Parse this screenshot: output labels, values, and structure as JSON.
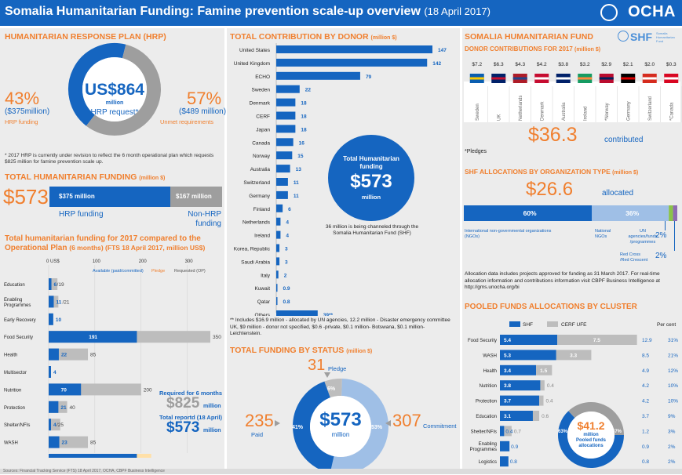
{
  "header": {
    "title": "Somalia Humanitarian Funding: Famine prevention scale-up overview",
    "date": "(18 April 2017)",
    "logo": "OCHA"
  },
  "hrp": {
    "title": "HUMANITARIAN RESPONSE PLAN (HRP)",
    "center_value": "US$864",
    "center_unit": "million",
    "center_label": "HRP request*",
    "funded_pct": "43%",
    "funded_amount": "($375million)",
    "funded_label": "HRP funding",
    "unmet_pct": "57%",
    "unmet_amount": "($489 million)",
    "unmet_label": "Unmet requirements",
    "note": "* 2017 HRP is currently under revision to reflect the 6 month operational plan which requests $825 million for famine prevention scale up.",
    "colors": {
      "funded": "#1565c0",
      "unmet": "#9e9e9e"
    },
    "chart_data": {
      "type": "pie",
      "slices": [
        {
          "label": "HRP funding",
          "value": 375
        },
        {
          "label": "Unmet requirements",
          "value": 489
        }
      ]
    }
  },
  "total_funding": {
    "title": "TOTAL HUMANITARIAN FUNDING",
    "title_unit": "(million $)",
    "total": "$573",
    "hrp_bar_label": "$375 million",
    "non_hrp_bar_label": "$167 million",
    "hrp_label": "HRP funding",
    "non_hrp_label": "Non-HRP funding",
    "chart_data": {
      "type": "bar",
      "categories": [
        "HRP funding",
        "Non-HRP funding"
      ],
      "values": [
        375,
        167
      ]
    }
  },
  "cluster_funding": {
    "title_line1": "Total humanitarian funding for 2017 compared to the",
    "title_line2": "Operational Plan",
    "title_line2_rest": "(6 months) (FTS 18 April 2017, million US$)",
    "legend_paid": "Available (paid/committed)",
    "legend_pledge": "Pledge",
    "legend_required": "Requested (OP)",
    "required_label": "Required for 6 months",
    "required_value": "$825",
    "required_unit": "million",
    "reported_label": "Total reportd (18 April)",
    "reported_value": "$573",
    "reported_unit": "million",
    "chart_data": {
      "type": "bar",
      "axis_ticks": [
        "0 US$",
        "100",
        "200",
        "300"
      ],
      "xlim": [
        0,
        360
      ],
      "rows": [
        {
          "category": "Education",
          "label_lines": [
            "Education"
          ],
          "available": 6,
          "pledge": 0,
          "required": 19,
          "available_label": "6",
          "required_label": "/19"
        },
        {
          "category": "Enabling Programmes",
          "label_lines": [
            "Enabling",
            "Programmes"
          ],
          "available": 11,
          "pledge": 0,
          "required": 21,
          "available_label": "11",
          "required_label": "/21"
        },
        {
          "category": "Early Recovery",
          "label_lines": [
            "Early Recovery"
          ],
          "available": 10,
          "pledge": 0,
          "required": 0,
          "available_label": "10",
          "required_label": ""
        },
        {
          "category": "Food Security",
          "label_lines": [
            "Food Security"
          ],
          "available": 191,
          "pledge": 0,
          "required": 350,
          "available_label": "191",
          "required_label": "350"
        },
        {
          "category": "Health",
          "label_lines": [
            "Health"
          ],
          "available": 22,
          "pledge": 0,
          "required": 85,
          "available_label": "22",
          "required_label": "85"
        },
        {
          "category": "Multisector",
          "label_lines": [
            "Multisector"
          ],
          "available": 4,
          "pledge": 0,
          "required": 0,
          "available_label": "4",
          "required_label": ""
        },
        {
          "category": "Nutrition",
          "label_lines": [
            "Nutrition"
          ],
          "available": 70,
          "pledge": 0,
          "required": 200,
          "available_label": "70",
          "required_label": "200"
        },
        {
          "category": "Protection",
          "label_lines": [
            "Protection"
          ],
          "available": 21,
          "pledge": 0,
          "required": 40,
          "available_label": "21",
          "required_label": "40"
        },
        {
          "category": "Shelter/NFIs",
          "label_lines": [
            "Shelter/NFIs"
          ],
          "available": 4,
          "pledge": 0,
          "required": 25,
          "available_label": "4",
          "required_label": "/25"
        },
        {
          "category": "WASH",
          "label_lines": [
            "WASH"
          ],
          "available": 23,
          "pledge": 0,
          "required": 85,
          "available_label": "23",
          "required_label": "85"
        },
        {
          "category": "Not yet specified",
          "label_lines": [
            "Not yet specified"
          ],
          "available": 191,
          "pledge": 31,
          "required": 0,
          "available_label": "191",
          "pledge_label": "31",
          "required_label": "221"
        }
      ]
    }
  },
  "donors": {
    "title": "TOTAL CONTRIBUTION BY DONOR",
    "title_unit": "(million $)",
    "total_label": "Total Humanitarian funding",
    "total_value": "$573",
    "total_unit": "million",
    "shf_note": "36 million is being channeled through the Somalia Humanitarian Fund (SHF)",
    "footnote": "** Includes $16.9 million - allocated by UN agencies, 12.2 million - Disaster emergency committee UK, $9 million - donor not specified, $0.6 -private, $0.1 million- Botswana, $0.1 million- Leichtenstein.",
    "chart_data": {
      "type": "bar",
      "orientation": "horizontal",
      "categories": [
        "United States",
        "United Kingdom",
        "ECHO",
        "Sweden",
        "Denmark",
        "CERF",
        "Japan",
        "Canada",
        "Norway",
        "Australia",
        "Switzerland",
        "Germany",
        "Finland",
        "Netherlands",
        "Ireland",
        "Korea, Republic",
        "Saudi Arabia",
        "Italy",
        "Kuwait",
        "Qatar",
        "Others"
      ],
      "values": [
        147,
        142,
        79,
        22,
        18,
        18,
        18,
        16,
        15,
        13,
        11,
        11,
        6,
        4,
        4,
        3,
        3,
        2,
        0.9,
        0.8,
        39
      ],
      "value_labels": [
        "147",
        "142",
        "79",
        "22",
        "18",
        "18",
        "18",
        "16",
        "15",
        "13",
        "11",
        "11",
        "6",
        "4",
        "4",
        "3",
        "3",
        "2",
        "0.9",
        "0.8",
        "39**"
      ],
      "xlim": [
        0,
        150
      ]
    }
  },
  "status": {
    "title": "TOTAL FUNDING BY STATUS",
    "title_unit": "(million $)",
    "pledge_value": "31",
    "pledge_label": "Pledge",
    "paid_value": "235",
    "paid_label": "Paid",
    "commitment_value": "307",
    "commitment_label": "Commitment",
    "center_value": "$573",
    "center_unit": "million",
    "colors": {
      "paid": "#1565c0",
      "commitment": "#9fbfe6",
      "pledge": "#bdbdbd"
    },
    "chart_data": {
      "type": "pie",
      "slices": [
        {
          "label": "Paid",
          "value": 41,
          "pct_label": "41%"
        },
        {
          "label": "Commitment",
          "value": 53,
          "pct_label": "53%"
        },
        {
          "label": "Pledge",
          "value": 6,
          "pct_label": "6%"
        }
      ]
    }
  },
  "shf": {
    "title": "SOMALIA HUMANITARIAN FUND",
    "logo": "SHF",
    "logo_sub": "Somalia Humanitarian Fund",
    "donor_title": "DONOR CONTRIBUTIONS FOR 2017",
    "donor_title_unit": "(million $)",
    "total": "$36.3",
    "total_label": "contributed",
    "pledges_note": "*Pledges",
    "chart_data": {
      "type": "table",
      "donors": [
        "Sweden",
        "UK",
        "Netherlands",
        "Denmark",
        "Australia",
        "Ireland",
        "*Norway",
        "Germany",
        "Switzerland",
        "*Canada"
      ],
      "amounts": [
        "$7.2",
        "$6.3",
        "$4.3",
        "$4.2",
        "$3.8",
        "$3.2",
        "$2.9",
        "$2.1",
        "$2.0",
        "$0.3"
      ]
    },
    "flag_colors": [
      [
        "#0a5eb0",
        "#fecb00"
      ],
      [
        "#012169",
        "#c8102e"
      ],
      [
        "#ae1c28",
        "#21468b"
      ],
      [
        "#c60c30",
        "#ffffff"
      ],
      [
        "#012169",
        "#ffffff"
      ],
      [
        "#169b62",
        "#ff883e"
      ],
      [
        "#ba0c2f",
        "#00205b"
      ],
      [
        "#000000",
        "#dd0000"
      ],
      [
        "#d52b1e",
        "#ffffff"
      ],
      [
        "#d80621",
        "#ffffff"
      ]
    ]
  },
  "shf_alloc": {
    "title": "SHF ALLOCATIONS BY ORGANIZATION TYPE",
    "title_unit": "(million $)",
    "total": "$26.6",
    "total_label": "allocated",
    "label_ingo": "International non-governmental organizations (NGOs)",
    "label_national": "National NGOs",
    "label_un": "UN agencies/funds /programmes",
    "label_rc": "Red Cross /Red Crescent",
    "note": "Allocation data includes projects approved for funding as 31 March 2017. For real-time allocation information and contributions information visit CBPF Business Intelligence at http://gms.unocha.org/bi",
    "chart_data": {
      "type": "bar",
      "stacked": true,
      "segments": [
        {
          "label": "International NGOs",
          "value": 60,
          "pct_label": "60%"
        },
        {
          "label": "National NGOs",
          "value": 36,
          "pct_label": "36%"
        },
        {
          "label": "UN agencies/funds/programmes",
          "value": 2,
          "pct_label": "2%"
        },
        {
          "label": "Red Cross/Red Crescent",
          "value": 2,
          "pct_label": "2%"
        }
      ]
    }
  },
  "pooled": {
    "title": "POOLED FUNDS ALLOCATIONS BY CLUSTER",
    "legend_shf": "SHF",
    "legend_cerf": "CERF UFE",
    "percent_header": "Per cent",
    "center_value": "$41.2",
    "center_unit": "million",
    "center_label": "Pooled funds allocations",
    "donut_left": "63%",
    "donut_right": "37%",
    "chart_data": {
      "type": "bar",
      "stacked": true,
      "xlim": [
        0,
        13
      ],
      "rows": [
        {
          "category": "Food Security",
          "label_lines": [
            "Food Security"
          ],
          "shf": 5.4,
          "cerf": 7.5,
          "shf_label": "5.4",
          "cerf_label": "7.5",
          "total": "12.9",
          "pct": "31%"
        },
        {
          "category": "WASH",
          "label_lines": [
            "WASH"
          ],
          "shf": 5.3,
          "cerf": 3.3,
          "shf_label": "5.3",
          "cerf_label": "3.3",
          "total": "8.5",
          "pct": "21%"
        },
        {
          "category": "Health",
          "label_lines": [
            "Health"
          ],
          "shf": 3.4,
          "cerf": 1.5,
          "shf_label": "3.4",
          "cerf_label": "1.5",
          "total": "4.9",
          "pct": "12%"
        },
        {
          "category": "Nutrition",
          "label_lines": [
            "Nutrition"
          ],
          "shf": 3.8,
          "cerf": 0.4,
          "shf_label": "3.8",
          "cerf_label": "0.4",
          "total": "4.2",
          "pct": "10%"
        },
        {
          "category": "Protection",
          "label_lines": [
            "Protection"
          ],
          "shf": 3.7,
          "cerf": 0.4,
          "shf_label": "3.7",
          "cerf_label": "0.4",
          "total": "4.2",
          "pct": "10%"
        },
        {
          "category": "Education",
          "label_lines": [
            "Education"
          ],
          "shf": 3.1,
          "cerf": 0.6,
          "shf_label": "3.1",
          "cerf_label": "0.6",
          "total": "3.7",
          "pct": "9%"
        },
        {
          "category": "Shelter/NFIs",
          "label_lines": [
            "Shelter/NFIs"
          ],
          "shf": 0.4,
          "cerf": 0.7,
          "shf_label": "0.4",
          "cerf_label": "0.7",
          "total": "1.2",
          "pct": "3%"
        },
        {
          "category": "Enabling Programmes",
          "label_lines": [
            "Enabling",
            "Programmes"
          ],
          "shf": 0.9,
          "cerf": 0,
          "shf_label": "0.9",
          "cerf_label": "",
          "total": "0.9",
          "pct": "2%"
        },
        {
          "category": "Logistics",
          "label_lines": [
            "Logistics"
          ],
          "shf": 0.8,
          "cerf": 0,
          "shf_label": "0.8",
          "cerf_label": "",
          "total": "0.8",
          "pct": "2%"
        }
      ],
      "donut": [
        {
          "label": "SHF",
          "value": 63
        },
        {
          "label": "CERF UFE",
          "value": 37
        }
      ]
    }
  },
  "footer": {
    "source": "Sources: Financial Tracking Service (FTS) 18 April 2017, OCHA, CBPF Business Intelligence"
  }
}
